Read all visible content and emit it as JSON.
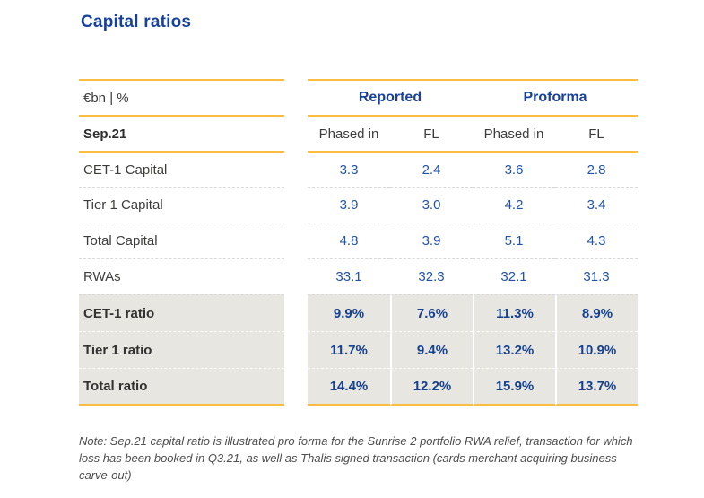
{
  "page": {
    "title": "Capital ratios"
  },
  "table": {
    "unit_label": "€bn | %",
    "period_label": "Sep.21",
    "groups": [
      "Reported",
      "Proforma"
    ],
    "subheaders": [
      "Phased in",
      "FL",
      "Phased in",
      "FL"
    ],
    "rows": [
      {
        "label": "CET-1 Capital",
        "values": [
          "3.3",
          "2.4",
          "3.6",
          "2.8"
        ]
      },
      {
        "label": "Tier 1 Capital",
        "values": [
          "3.9",
          "3.0",
          "4.2",
          "3.4"
        ]
      },
      {
        "label": "Total Capital",
        "values": [
          "4.8",
          "3.9",
          "5.1",
          "4.3"
        ]
      },
      {
        "label": "RWAs",
        "values": [
          "33.1",
          "32.3",
          "32.1",
          "31.3"
        ]
      },
      {
        "label": "CET-1 ratio",
        "values": [
          "9.9%",
          "7.6%",
          "11.3%",
          "8.9%"
        ]
      },
      {
        "label": "Tier 1 ratio",
        "values": [
          "11.7%",
          "9.4%",
          "13.2%",
          "10.9%"
        ]
      },
      {
        "label": "Total ratio",
        "values": [
          "14.4%",
          "12.2%",
          "15.9%",
          "13.7%"
        ]
      }
    ]
  },
  "note": "Note: Sep.21 capital ratio is illustrated pro forma for the Sunrise 2 portfolio RWA relief, transaction for which loss has been booked in Q3.21, as well as Thalis signed transaction (cards merchant acquiring business carve-out)",
  "colors": {
    "accent_gold": "#FBBC42",
    "title_blue": "#17419B",
    "value_blue": "#2253A7",
    "ratio_value_blue": "#15418F",
    "shaded_row_bg": "#E8E6E1"
  }
}
